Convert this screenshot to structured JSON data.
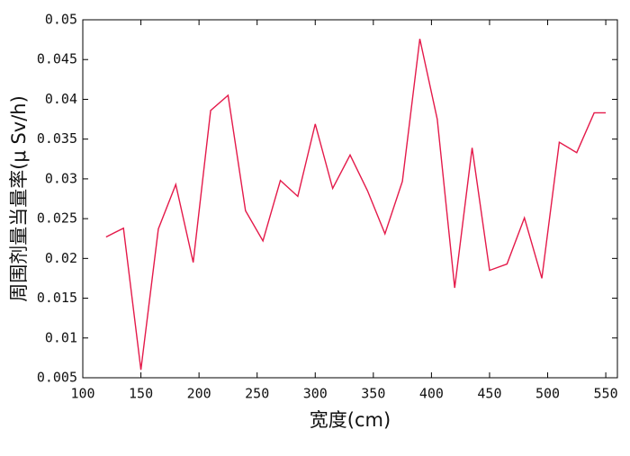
{
  "chart_data": {
    "type": "line",
    "xlabel": "宽度(cm)",
    "ylabel": "周围剂量当量率(μ Sv/h)",
    "x": [
      120,
      135,
      150,
      165,
      180,
      195,
      210,
      225,
      240,
      255,
      270,
      285,
      300,
      315,
      330,
      345,
      360,
      375,
      390,
      405,
      420,
      435,
      450,
      465,
      480,
      495,
      510,
      525,
      540,
      550
    ],
    "series": [
      {
        "color": "#e41a4a",
        "values": [
          0.0227,
          0.0238,
          0.006,
          0.0237,
          0.0293,
          0.0195,
          0.0386,
          0.0405,
          0.026,
          0.0222,
          0.0298,
          0.0278,
          0.0369,
          0.0288,
          0.033,
          0.0285,
          0.0231,
          0.0297,
          0.0476,
          0.0375,
          0.0163,
          0.0339,
          0.0185,
          0.0193,
          0.0251,
          0.0175,
          0.0346,
          0.0333,
          0.0383,
          0.0383
        ]
      }
    ],
    "xlim": [
      100,
      560
    ],
    "xticks": [
      100,
      150,
      200,
      250,
      300,
      350,
      400,
      450,
      500,
      550
    ],
    "ylim": [
      0.005,
      0.05
    ],
    "yticks": [
      0.005,
      0.01,
      0.015,
      0.02,
      0.025,
      0.03,
      0.035,
      0.04,
      0.045,
      0.05
    ],
    "grid": false
  }
}
